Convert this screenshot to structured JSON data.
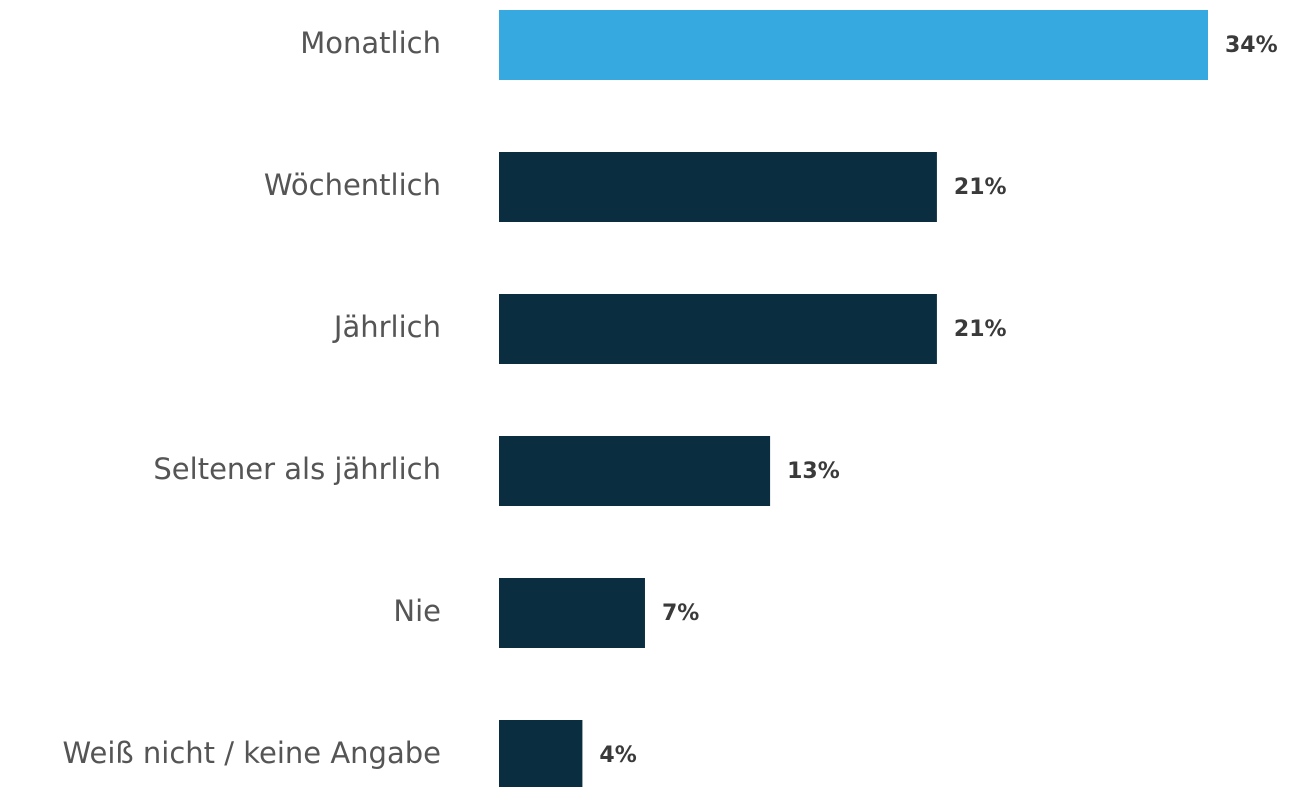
{
  "chart_data": {
    "type": "bar",
    "orientation": "horizontal",
    "categories": [
      "Monatlich",
      "Wöchentlich",
      "Jährlich",
      "Seltener als jährlich",
      "Nie",
      "Weiß nicht / keine Angabe"
    ],
    "values": [
      34,
      21,
      21,
      13,
      7,
      4
    ],
    "value_labels": [
      "34%",
      "21%",
      "21%",
      "13%",
      "7%",
      "4%"
    ],
    "colors": [
      "#36a9e1",
      "#0a2d40",
      "#0a2d40",
      "#0a2d40",
      "#0a2d40",
      "#0a2d40"
    ]
  }
}
